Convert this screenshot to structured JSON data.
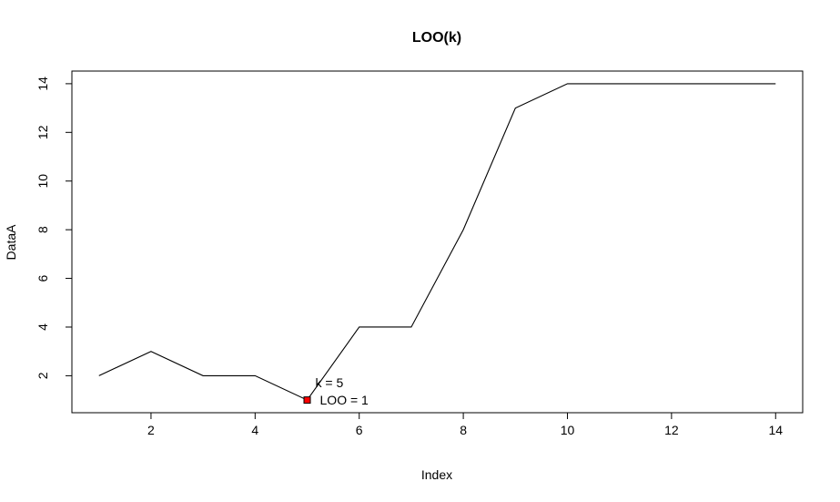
{
  "chart_data": {
    "type": "line",
    "title": "LOO(k)",
    "xlabel": "Index",
    "ylabel": "DataA",
    "x": [
      1,
      2,
      3,
      4,
      5,
      6,
      7,
      8,
      9,
      10,
      11,
      12,
      13,
      14
    ],
    "series": [
      {
        "values": [
          2,
          3,
          2,
          2,
          1,
          4,
          4,
          8,
          13,
          14,
          14,
          14,
          14,
          14
        ]
      }
    ],
    "xlim": [
      0.48,
      14.52
    ],
    "ylim": [
      0.48,
      14.52
    ],
    "xticks": [
      2,
      4,
      6,
      8,
      10,
      12,
      14
    ],
    "yticks": [
      2,
      4,
      6,
      8,
      10,
      12,
      14
    ],
    "highlight": {
      "x": 5,
      "y": 1,
      "color": "#ff0000"
    },
    "annotations": [
      "k =  5",
      "LOO =  1"
    ],
    "line_color": "#000000",
    "grid": false
  }
}
